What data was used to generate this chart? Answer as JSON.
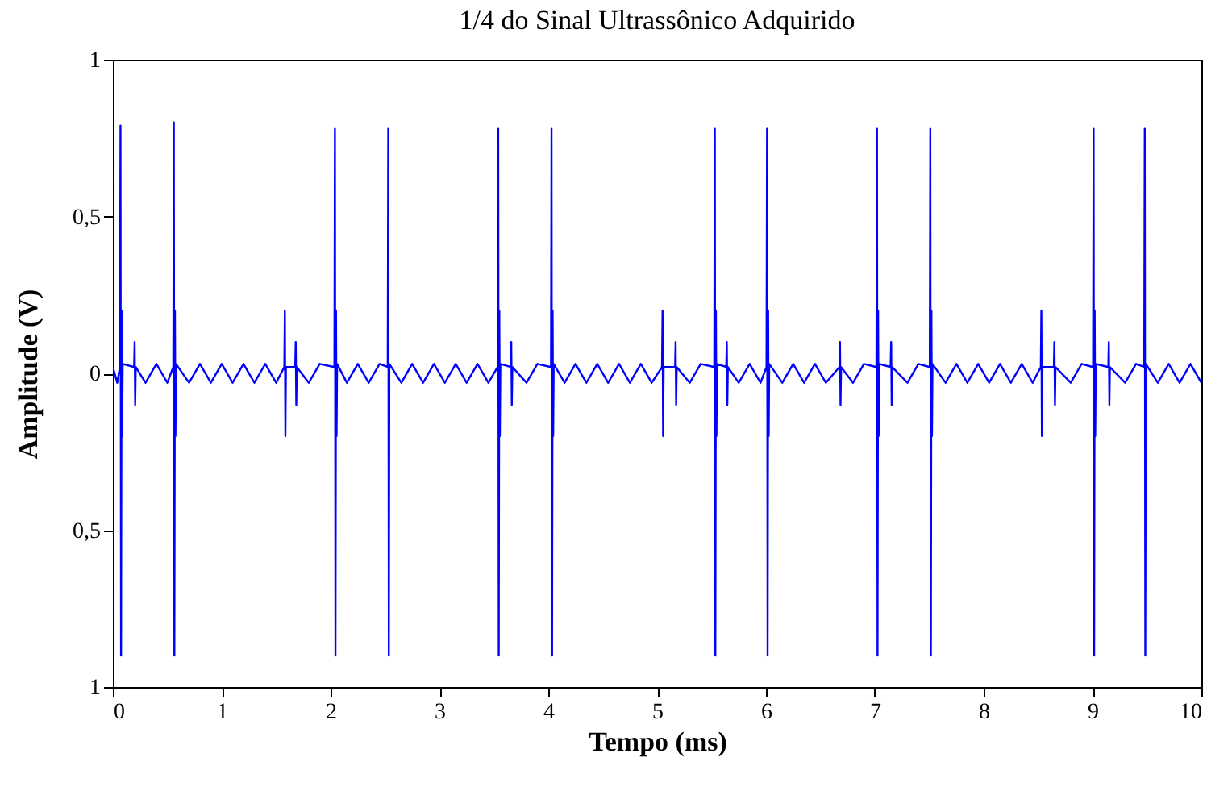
{
  "chart_data": {
    "type": "line",
    "title": "1/4 do Sinal Ultrassônico Adquirido",
    "xlabel": "Tempo (ms)",
    "ylabel": "Amplitude (V)",
    "xlim": [
      0,
      10
    ],
    "xticks": [
      0,
      1,
      2,
      3,
      4,
      5,
      6,
      7,
      8,
      9,
      10
    ],
    "ylim": [
      -1,
      1
    ],
    "yticks": [
      {
        "value": -1,
        "label": "1"
      },
      {
        "value": -0.5,
        "label": "0,5"
      },
      0,
      {
        "value": 0.5,
        "label": "0,5"
      },
      1
    ],
    "grid": false,
    "x": [
      0,
      0.04,
      0.065,
      0.07,
      0.075,
      0.08,
      0.085,
      0.09,
      0.195,
      0.2,
      0.205,
      0.21,
      0.3,
      0.4,
      0.5,
      0.555,
      0.56,
      0.565,
      0.57,
      0.575,
      0.58,
      0.7,
      0.8,
      0.9,
      1.0,
      1.1,
      1.2,
      1.3,
      1.4,
      1.5,
      1.575,
      1.58,
      1.585,
      1.59,
      1.675,
      1.68,
      1.685,
      1.69,
      1.8,
      1.9,
      2.035,
      2.04,
      2.045,
      2.05,
      2.055,
      2.06,
      2.15,
      2.25,
      2.35,
      2.45,
      2.525,
      2.53,
      2.535,
      2.54,
      2.65,
      2.75,
      2.85,
      2.95,
      3.05,
      3.15,
      3.25,
      3.35,
      3.45,
      3.535,
      3.54,
      3.545,
      3.55,
      3.555,
      3.56,
      3.655,
      3.66,
      3.665,
      3.67,
      3.8,
      3.9,
      4.025,
      4.03,
      4.035,
      4.04,
      4.045,
      4.05,
      4.15,
      4.25,
      4.35,
      4.45,
      4.55,
      4.65,
      4.75,
      4.85,
      4.95,
      5.045,
      5.05,
      5.055,
      5.06,
      5.165,
      5.17,
      5.175,
      5.18,
      5.3,
      5.4,
      5.525,
      5.53,
      5.535,
      5.54,
      5.545,
      5.55,
      5.635,
      5.64,
      5.645,
      5.65,
      5.75,
      5.85,
      5.95,
      6.005,
      6.01,
      6.015,
      6.02,
      6.025,
      6.03,
      6.15,
      6.25,
      6.35,
      6.45,
      6.55,
      6.675,
      6.68,
      6.685,
      6.69,
      6.8,
      6.9,
      7.015,
      7.02,
      7.025,
      7.03,
      7.035,
      7.04,
      7.145,
      7.15,
      7.155,
      7.16,
      7.3,
      7.4,
      7.505,
      7.51,
      7.515,
      7.52,
      7.525,
      7.53,
      7.65,
      7.75,
      7.85,
      7.95,
      8.05,
      8.15,
      8.25,
      8.35,
      8.45,
      8.525,
      8.53,
      8.535,
      8.54,
      8.645,
      8.65,
      8.655,
      8.66,
      8.8,
      8.9,
      9.005,
      9.01,
      9.015,
      9.02,
      9.025,
      9.03,
      9.145,
      9.15,
      9.155,
      9.16,
      9.3,
      9.4,
      9.475,
      9.48,
      9.485,
      9.49,
      9.6,
      9.7,
      9.8,
      9.9,
      10
    ],
    "series": [
      {
        "color": "#0000ff",
        "values": [
          0.02,
          -0.03,
          0.02,
          0.79,
          -0.9,
          0.2,
          -0.2,
          0.03,
          0.02,
          0.1,
          -0.1,
          0.02,
          -0.03,
          0.03,
          -0.03,
          0.02,
          0.8,
          -0.9,
          0.2,
          -0.2,
          0.03,
          -0.03,
          0.03,
          -0.03,
          0.03,
          -0.03,
          0.03,
          -0.03,
          0.03,
          -0.03,
          0.02,
          0.2,
          -0.2,
          0.02,
          0.02,
          0.1,
          -0.1,
          0.02,
          -0.03,
          0.03,
          0.02,
          0.78,
          -0.9,
          0.2,
          -0.2,
          0.03,
          -0.03,
          0.03,
          -0.03,
          0.03,
          0.02,
          0.78,
          -0.9,
          0.03,
          -0.03,
          0.03,
          -0.03,
          0.03,
          -0.03,
          0.03,
          -0.03,
          0.03,
          -0.03,
          0.02,
          0.78,
          -0.9,
          0.2,
          -0.2,
          0.03,
          0.02,
          0.1,
          -0.1,
          0.02,
          -0.03,
          0.03,
          0.02,
          0.78,
          -0.9,
          0.2,
          -0.2,
          0.03,
          -0.03,
          0.03,
          -0.03,
          0.03,
          -0.03,
          0.03,
          -0.03,
          0.03,
          -0.03,
          0.02,
          0.2,
          -0.2,
          0.02,
          0.02,
          0.1,
          -0.1,
          0.02,
          -0.03,
          0.03,
          0.02,
          0.78,
          -0.9,
          0.2,
          -0.2,
          0.03,
          0.02,
          0.1,
          -0.1,
          0.02,
          -0.03,
          0.03,
          -0.03,
          0.02,
          0.78,
          -0.9,
          0.2,
          -0.2,
          0.03,
          -0.03,
          0.03,
          -0.03,
          0.03,
          -0.03,
          0.02,
          0.1,
          -0.1,
          0.02,
          -0.03,
          0.03,
          0.02,
          0.78,
          -0.9,
          0.2,
          -0.2,
          0.03,
          0.02,
          0.1,
          -0.1,
          0.02,
          -0.03,
          0.03,
          0.02,
          0.78,
          -0.9,
          0.2,
          -0.2,
          0.03,
          -0.03,
          0.03,
          -0.03,
          0.03,
          -0.03,
          0.03,
          -0.03,
          0.03,
          -0.03,
          0.02,
          0.2,
          -0.2,
          0.02,
          0.02,
          0.1,
          -0.1,
          0.02,
          -0.03,
          0.03,
          0.02,
          0.78,
          -0.9,
          0.2,
          -0.2,
          0.03,
          0.02,
          0.1,
          -0.1,
          0.02,
          -0.03,
          0.03,
          0.02,
          0.78,
          -0.9,
          0.03,
          -0.03,
          0.03,
          -0.03,
          0.03,
          -0.03
        ]
      }
    ]
  }
}
